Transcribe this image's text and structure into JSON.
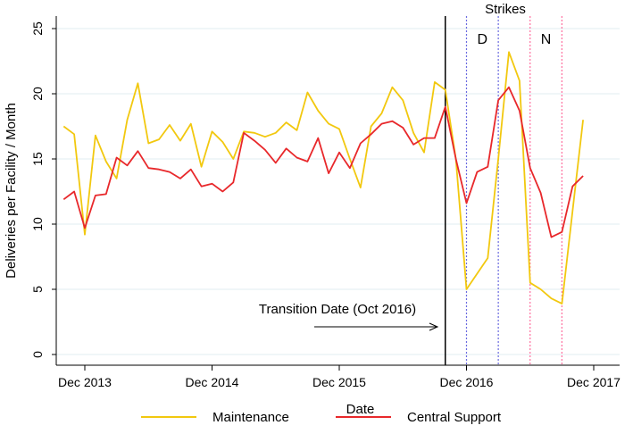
{
  "chart_data": {
    "type": "line",
    "title": "",
    "xlabel": "Date",
    "ylabel": "Deliveries per Facility / Month",
    "ylim": [
      0,
      25
    ],
    "xlim": [
      "2013-10",
      "2017-12"
    ],
    "grid": "horizontal",
    "legend_position": "bottom",
    "x_ticks": [
      "Dec 2013",
      "Dec 2014",
      "Dec 2015",
      "Dec 2016",
      "Dec 2017"
    ],
    "y_ticks": [
      "0",
      "5",
      "10",
      "15",
      "20",
      "25"
    ],
    "x": [
      "2013-10",
      "2013-11",
      "2013-12",
      "2014-01",
      "2014-02",
      "2014-03",
      "2014-04",
      "2014-05",
      "2014-06",
      "2014-07",
      "2014-08",
      "2014-09",
      "2014-10",
      "2014-11",
      "2014-12",
      "2015-01",
      "2015-02",
      "2015-03",
      "2015-04",
      "2015-05",
      "2015-06",
      "2015-07",
      "2015-08",
      "2015-09",
      "2015-10",
      "2015-11",
      "2015-12",
      "2016-01",
      "2016-02",
      "2016-03",
      "2016-04",
      "2016-05",
      "2016-06",
      "2016-07",
      "2016-08",
      "2016-09",
      "2016-10",
      "2016-11",
      "2016-12",
      "2017-01",
      "2017-02",
      "2017-03",
      "2017-04",
      "2017-05",
      "2017-06",
      "2017-07",
      "2017-08",
      "2017-09",
      "2017-10",
      "2017-11"
    ],
    "series": [
      {
        "name": "Maintenance",
        "color": "#f2c80f",
        "values": [
          17.5,
          16.9,
          9.2,
          16.8,
          14.8,
          13.5,
          18.0,
          20.8,
          16.2,
          16.5,
          17.6,
          16.4,
          17.7,
          14.4,
          17.1,
          16.3,
          15.0,
          17.1,
          17.0,
          16.7,
          17.0,
          17.8,
          17.2,
          20.1,
          18.7,
          17.7,
          17.3,
          15.0,
          12.8,
          17.5,
          18.5,
          20.5,
          19.5,
          17.0,
          15.5,
          20.9,
          20.3,
          15.0,
          5.0,
          6.2,
          7.4,
          15.0,
          23.2,
          21.0,
          5.5,
          5.0,
          4.3,
          3.9,
          11.0,
          18.0
        ]
      },
      {
        "name": "Central Support",
        "color": "#e8282b",
        "values": [
          11.9,
          12.5,
          9.7,
          12.2,
          12.3,
          15.1,
          14.5,
          15.6,
          14.3,
          14.2,
          14.0,
          13.5,
          14.2,
          12.9,
          13.1,
          12.5,
          13.2,
          17.0,
          16.4,
          15.7,
          14.7,
          15.8,
          15.1,
          14.8,
          16.6,
          13.9,
          15.5,
          14.3,
          16.2,
          16.9,
          17.7,
          17.9,
          17.4,
          16.1,
          16.6,
          16.6,
          19.0,
          15.0,
          11.6,
          14.0,
          14.4,
          19.5,
          20.5,
          18.7,
          14.3,
          12.4,
          9.0,
          9.4,
          12.9,
          13.7
        ]
      }
    ],
    "vertical_lines": [
      {
        "x": "2016-10",
        "style": "solid",
        "color": "#000000"
      },
      {
        "x": "2016-12",
        "style": "dotted",
        "color": "#6a6ae0"
      },
      {
        "x": "2017-03",
        "style": "dotted",
        "color": "#6a6ae0"
      },
      {
        "x": "2017-06",
        "style": "dotted",
        "color": "#ff6f9f"
      },
      {
        "x": "2017-09",
        "style": "dotted",
        "color": "#ff6f9f"
      }
    ],
    "annotations": {
      "strikes_label": "Strikes",
      "strike_d_label": "D",
      "strike_d_color": "#2b2bd6",
      "strike_n_label": "N",
      "strike_n_color": "#e0197a",
      "transition_label": "Transition Date (Oct 2016)"
    }
  }
}
